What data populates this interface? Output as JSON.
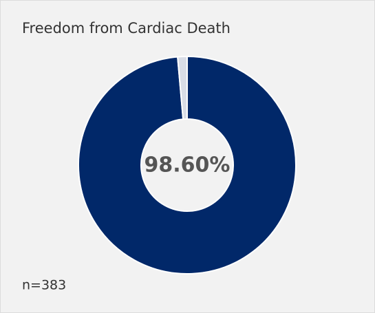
{
  "chart_data": {
    "type": "donut",
    "title": "Freedom from Cardiac Death",
    "values": [
      98.6,
      1.4
    ],
    "value_labels": [
      "98.60%",
      null
    ],
    "colors": [
      "#012869",
      "#d9dde6"
    ],
    "annotation": "n=383"
  }
}
